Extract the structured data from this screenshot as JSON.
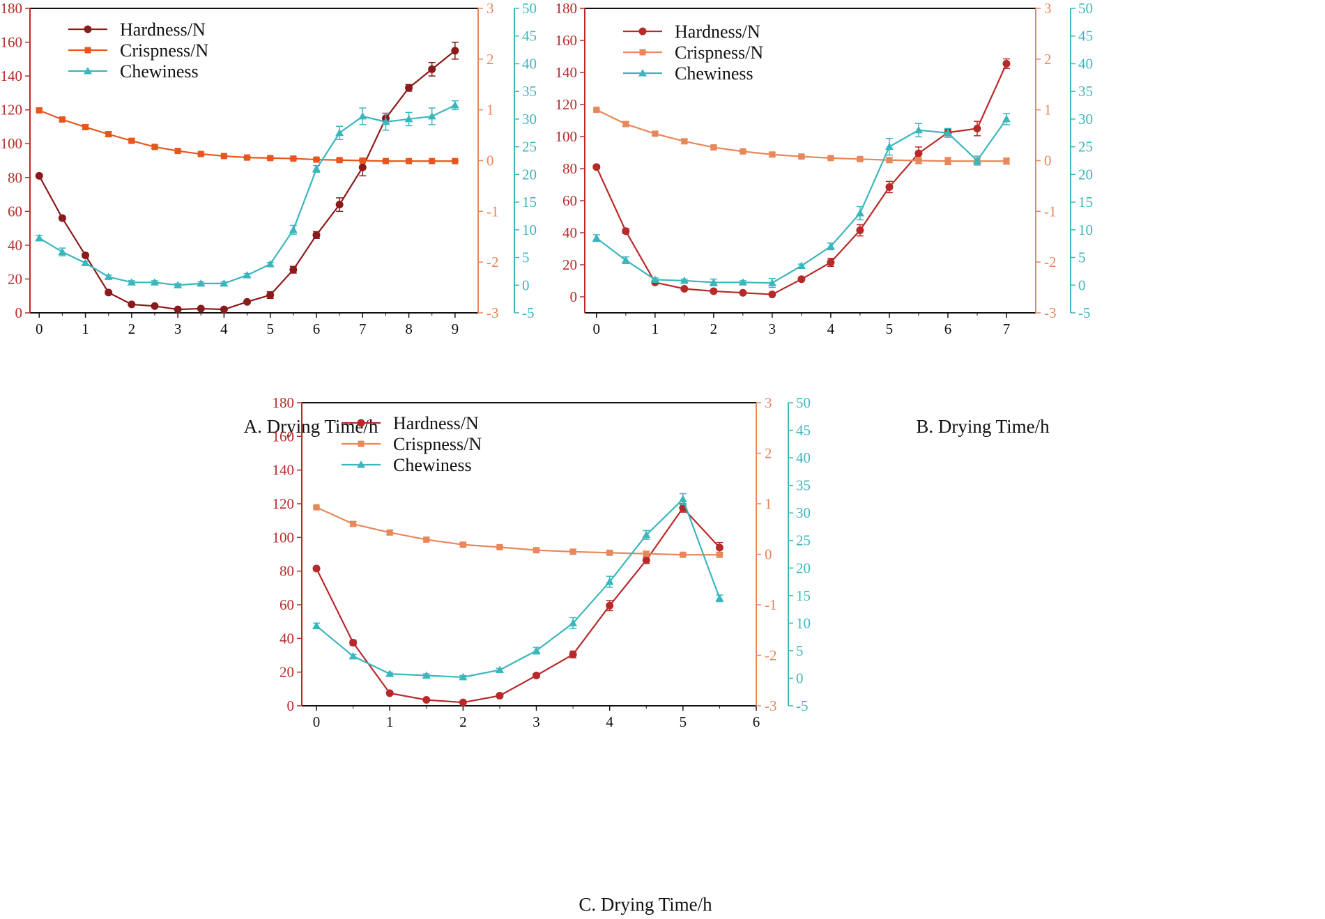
{
  "colors": {
    "hardness_A": "#8b1a1a",
    "hardness": "#b82a2a",
    "crispness_A": "#e8561e",
    "crispness": "#e8875a",
    "chewiness": "#3bb6bd",
    "left_axis": "#b82a2a",
    "crisp_axis": "#e8875a",
    "chew_axis": "#3bb6bd"
  },
  "chart_data": [
    {
      "id": "A",
      "type": "line",
      "xlabel": "A. Drying Time/h",
      "xlim": [
        -0.2,
        9.5
      ],
      "xticks": [
        0,
        1,
        2,
        3,
        4,
        5,
        6,
        7,
        8,
        9
      ],
      "ylim_left": [
        0,
        180
      ],
      "yticks_left": [
        0,
        20,
        40,
        60,
        80,
        100,
        120,
        140,
        160,
        180
      ],
      "ylim_crisp": [
        -3,
        3
      ],
      "yticks_crisp": [
        -3,
        -2,
        -1,
        0,
        1,
        2,
        3
      ],
      "ylim_chew": [
        -5,
        50
      ],
      "yticks_chew": [
        -5,
        0,
        5,
        10,
        15,
        20,
        25,
        30,
        35,
        40,
        45,
        50
      ],
      "legend": [
        "Hardness/N",
        "Crispness/N",
        "Chewiness"
      ],
      "legend_position": "top-left",
      "series": [
        {
          "name": "Hardness/N",
          "axis": "left",
          "marker": "circle",
          "color_key": "hardness_A",
          "x": [
            0,
            0.5,
            1,
            1.5,
            2,
            2.5,
            3,
            3.5,
            4,
            4.5,
            5,
            5.5,
            6,
            6.5,
            7,
            7.5,
            8,
            8.5,
            9
          ],
          "values": [
            81,
            56,
            34,
            12,
            5,
            4,
            2,
            2.5,
            2,
            6.5,
            10.5,
            25.5,
            46,
            64,
            86,
            115,
            133,
            144,
            155
          ],
          "errors": [
            1,
            1,
            1,
            1,
            0.5,
            0.5,
            0.5,
            0.5,
            0.5,
            0.5,
            2,
            2,
            2,
            4,
            5,
            3,
            2,
            4,
            5
          ]
        },
        {
          "name": "Crispness/N",
          "axis": "crisp",
          "marker": "square",
          "color_key": "crispness_A",
          "x": [
            0,
            0.5,
            1,
            1.5,
            2,
            2.5,
            3,
            3.5,
            4,
            4.5,
            5,
            5.5,
            6,
            6.5,
            7,
            7.5,
            8,
            8.5,
            9
          ],
          "values": [
            0.99,
            0.81,
            0.66,
            0.52,
            0.39,
            0.27,
            0.19,
            0.13,
            0.09,
            0.06,
            0.05,
            0.04,
            0.02,
            0.01,
            0.0,
            -0.01,
            -0.01,
            -0.01,
            -0.01
          ],
          "errors": [
            0.03,
            0.03,
            0.05,
            0.05,
            0.03,
            0.03,
            0.02,
            0.02,
            0.02,
            0.02,
            0.02,
            0.02,
            0.02,
            0.02,
            0.02,
            0.02,
            0.01,
            0.01,
            0.01
          ]
        },
        {
          "name": "Chewiness",
          "axis": "chew",
          "marker": "triangle",
          "color_key": "chewiness",
          "x": [
            0,
            0.5,
            1,
            1.5,
            2,
            2.5,
            3,
            3.5,
            4,
            4.5,
            5,
            5.5,
            6,
            6.5,
            7,
            7.5,
            8,
            8.5,
            9
          ],
          "values": [
            8.5,
            6,
            4,
            1.5,
            0.5,
            0.5,
            0,
            0.3,
            0.3,
            1.8,
            3.8,
            10,
            21,
            27.5,
            30.5,
            29.5,
            30,
            30.5,
            32.5
          ],
          "errors": [
            0.5,
            0.7,
            0.3,
            0.3,
            0.3,
            0.3,
            0.3,
            0.3,
            0.3,
            0.3,
            0.3,
            0.8,
            0.6,
            1.2,
            1.5,
            1.5,
            1.2,
            1.5,
            0.8
          ]
        }
      ]
    },
    {
      "id": "B",
      "type": "line",
      "xlabel": "B. Drying Time/h",
      "xlim": [
        -0.2,
        7.5
      ],
      "xticks": [
        0,
        1,
        2,
        3,
        4,
        5,
        6,
        7
      ],
      "ylim_left": [
        -10,
        180
      ],
      "yticks_left": [
        0,
        20,
        40,
        60,
        80,
        100,
        120,
        140,
        160,
        180
      ],
      "ylim_crisp": [
        -3,
        3
      ],
      "yticks_crisp": [
        -3,
        -2,
        -1,
        0,
        1,
        2,
        3
      ],
      "ylim_chew": [
        -5,
        50
      ],
      "yticks_chew": [
        -5,
        0,
        5,
        10,
        15,
        20,
        25,
        30,
        35,
        40,
        45,
        50
      ],
      "legend": [
        "Hardness/N",
        "Crispness/N",
        "Chewiness"
      ],
      "legend_position": "top-left",
      "series": [
        {
          "name": "Hardness/N",
          "axis": "left",
          "marker": "circle",
          "color_key": "hardness",
          "x": [
            0,
            0.5,
            1,
            1.5,
            2,
            2.5,
            3,
            3.5,
            4,
            4.5,
            5,
            5.5,
            6,
            6.5,
            7
          ],
          "values": [
            81,
            41,
            9,
            5,
            3.5,
            2.5,
            1.5,
            11,
            21.5,
            41.5,
            68.5,
            89.5,
            102.5,
            105,
            145.5
          ],
          "errors": [
            1,
            1.5,
            1,
            0.5,
            0.5,
            0.5,
            0.5,
            1,
            2.5,
            3.5,
            3.5,
            4,
            2,
            4.5,
            3
          ]
        },
        {
          "name": "Crispness/N",
          "axis": "crisp",
          "marker": "square",
          "color_key": "crispness",
          "x": [
            0,
            0.5,
            1,
            1.5,
            2,
            2.5,
            3,
            3.5,
            4,
            4.5,
            5,
            5.5,
            6,
            6.5,
            7
          ],
          "values": [
            1.0,
            0.72,
            0.53,
            0.38,
            0.26,
            0.18,
            0.12,
            0.08,
            0.05,
            0.03,
            0.01,
            0.0,
            -0.01,
            -0.01,
            -0.01
          ],
          "errors": [
            0.02,
            0.05,
            0.03,
            0.04,
            0.03,
            0.02,
            0.04,
            0.03,
            0.02,
            0.03,
            0.05,
            0.06,
            0.07,
            0.06,
            0.06
          ]
        },
        {
          "name": "Chewiness",
          "axis": "chew",
          "marker": "triangle",
          "color_key": "chewiness",
          "x": [
            0,
            0.5,
            1,
            1.5,
            2,
            2.5,
            3,
            3.5,
            4,
            4.5,
            5,
            5.5,
            6,
            6.5,
            7
          ],
          "values": [
            8.5,
            4.5,
            1,
            0.8,
            0.5,
            0.5,
            0.4,
            3.5,
            7,
            13,
            25,
            28,
            27.5,
            22.5,
            30
          ],
          "errors": [
            0.6,
            0.6,
            0.3,
            0.3,
            0.6,
            0.3,
            0.8,
            0.3,
            0.6,
            1.2,
            1.5,
            1.2,
            0.8,
            0.8,
            1
          ]
        }
      ]
    },
    {
      "id": "C",
      "type": "line",
      "xlabel": "C. Drying Time/h",
      "xlim": [
        -0.2,
        6
      ],
      "xticks": [
        0,
        1,
        2,
        3,
        4,
        5,
        6
      ],
      "ylim_left": [
        0,
        180
      ],
      "yticks_left": [
        0,
        20,
        40,
        60,
        80,
        100,
        120,
        140,
        160,
        180
      ],
      "ylim_crisp": [
        -3,
        3
      ],
      "yticks_crisp": [
        -3,
        -2,
        -1,
        0,
        1,
        2,
        3
      ],
      "ylim_chew": [
        -5,
        50
      ],
      "yticks_chew": [
        -5,
        0,
        5,
        10,
        15,
        20,
        25,
        30,
        35,
        40,
        45,
        50
      ],
      "legend": [
        "Hardness/N",
        "Crispness/N",
        "Chewiness"
      ],
      "legend_position": "top-left",
      "series": [
        {
          "name": "Hardness/N",
          "axis": "left",
          "marker": "circle",
          "color_key": "hardness",
          "x": [
            0,
            0.5,
            1,
            1.5,
            2,
            2.5,
            3,
            3.5,
            4,
            4.5,
            5,
            5.5
          ],
          "values": [
            81.5,
            37.5,
            7.5,
            3.5,
            2,
            6,
            18,
            30.5,
            59.5,
            86.5,
            117.5,
            94
          ],
          "errors": [
            1,
            1.5,
            0.5,
            0.5,
            0.5,
            1,
            1,
            2,
            3,
            2,
            2.5,
            3
          ]
        },
        {
          "name": "Crispness/N",
          "axis": "crisp",
          "marker": "square",
          "color_key": "crispness",
          "x": [
            0,
            0.5,
            1,
            1.5,
            2,
            2.5,
            3,
            3.5,
            4,
            4.5,
            5,
            5.5
          ],
          "values": [
            0.93,
            0.6,
            0.43,
            0.29,
            0.19,
            0.14,
            0.08,
            0.05,
            0.03,
            0.01,
            -0.01,
            -0.01
          ],
          "errors": [
            0.02,
            0.05,
            0.04,
            0.03,
            0.04,
            0.02,
            0.03,
            0.05,
            0.02,
            0.05,
            0.02,
            0.02
          ]
        },
        {
          "name": "Chewiness",
          "axis": "chew",
          "marker": "triangle",
          "color_key": "chewiness",
          "x": [
            0,
            0.5,
            1,
            1.5,
            2,
            2.5,
            3,
            3.5,
            4,
            4.5,
            5,
            5.5
          ],
          "values": [
            9.5,
            4,
            0.8,
            0.5,
            0.2,
            1.5,
            5,
            10,
            17.5,
            26,
            32.5,
            14.5
          ],
          "errors": [
            0.5,
            0.3,
            0.3,
            0.3,
            0.3,
            0.3,
            0.6,
            1,
            1,
            0.8,
            1,
            0.6
          ]
        }
      ]
    }
  ]
}
